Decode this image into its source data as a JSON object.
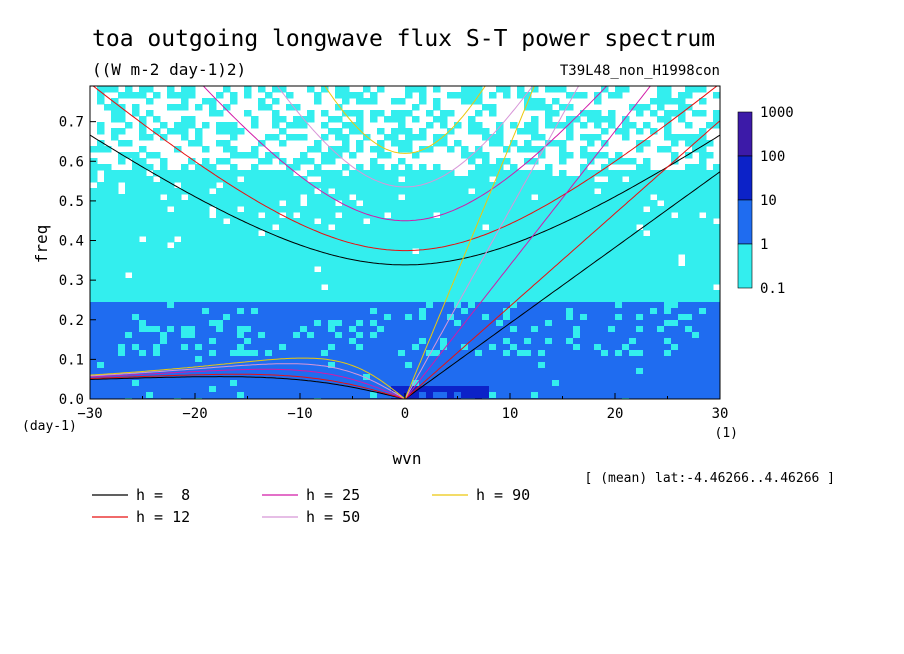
{
  "chart_data": {
    "type": "heatmap",
    "title": "toa outgoing longwave flux S-T power spectrum",
    "units": "((W m-2 day-1)2)",
    "experiment": "T39L48_non_H1998con",
    "xlabel": "wvn",
    "xunit": "(1)",
    "ylabel": "freq",
    "yunit": "(day-1)",
    "xlim": [
      -30,
      30
    ],
    "ylim": [
      0,
      0.79
    ],
    "xticks": [
      -30,
      -20,
      -10,
      0,
      10,
      20,
      30
    ],
    "yticks": [
      0.0,
      0.1,
      0.2,
      0.3,
      0.4,
      0.5,
      0.6,
      0.7
    ],
    "ytick_labels": [
      "0.0",
      "0.1",
      "0.2",
      "0.3",
      "0.4",
      "0.5",
      "0.6",
      "0.7"
    ],
    "region_note": "[ (mean) lat:-4.46266..4.46266 ]",
    "colorbar": {
      "levels": [
        "0.1",
        "1",
        "10",
        "100",
        "1000"
      ],
      "colors": [
        "#33eeee",
        "#1f6cf0",
        "#0c22c8",
        "#3c1aa8"
      ]
    },
    "dispersion_curves": [
      {
        "label": "h =  8",
        "h": 8,
        "color": "#000000"
      },
      {
        "label": "h = 12",
        "h": 12,
        "color": "#e81010"
      },
      {
        "label": "h = 25",
        "h": 25,
        "color": "#d21aa8"
      },
      {
        "label": "h = 50",
        "h": 50,
        "color": "#d896d8"
      },
      {
        "label": "h = 90",
        "h": 90,
        "color": "#ecc80e"
      }
    ]
  }
}
